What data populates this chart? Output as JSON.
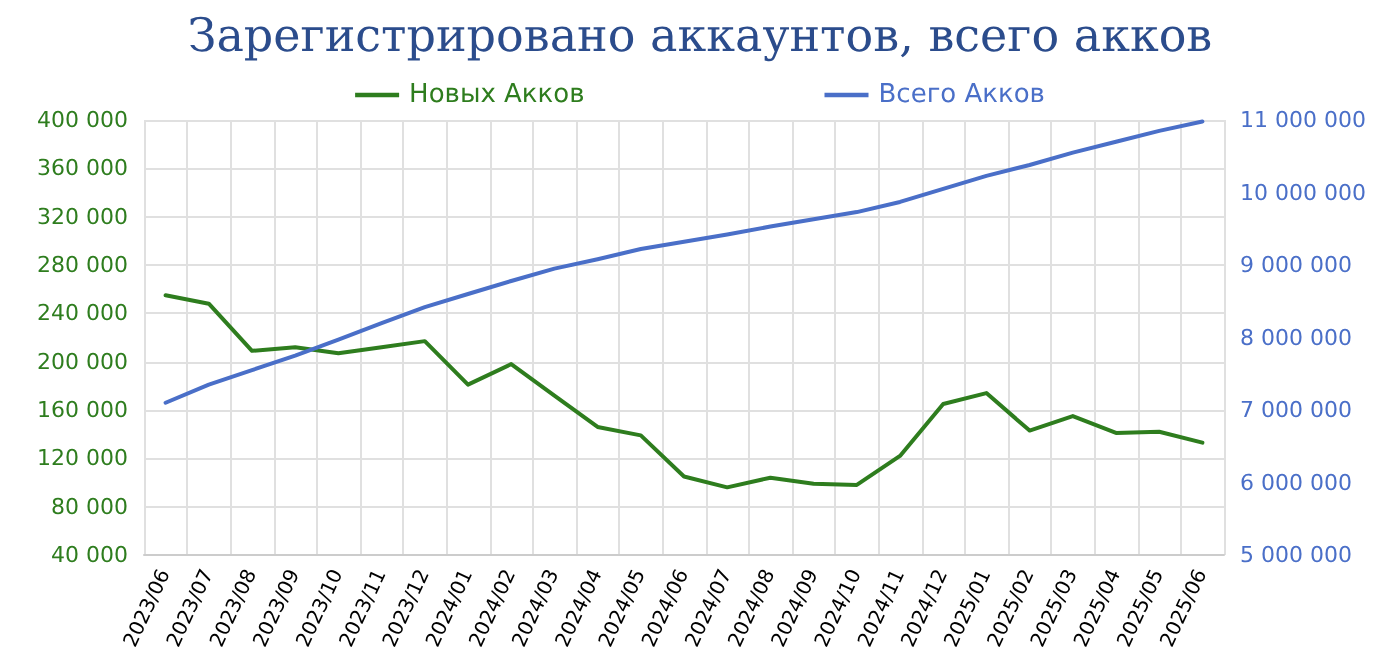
{
  "chart_data": {
    "type": "line",
    "title": "Зарегистрировано аккаунтов, всего акков",
    "categories": [
      "2023/06",
      "2023/07",
      "2023/08",
      "2023/09",
      "2023/10",
      "2023/11",
      "2023/12",
      "2024/01",
      "2024/02",
      "2024/03",
      "2024/04",
      "2024/05",
      "2024/06",
      "2024/07",
      "2024/08",
      "2024/09",
      "2024/10",
      "2024/11",
      "2024/12",
      "2025/01",
      "2025/02",
      "2025/03",
      "2025/04",
      "2025/05",
      "2025/06"
    ],
    "series": [
      {
        "name": "Новых Акков",
        "color": "#2e7d1e",
        "values": [
          255000,
          248000,
          209000,
          212000,
          207000,
          212000,
          217000,
          181000,
          198000,
          172000,
          146000,
          139000,
          105000,
          96000,
          104000,
          99000,
          98000,
          122000,
          165000,
          174000,
          143000,
          155000,
          141000,
          142000,
          133000
        ]
      },
      {
        "name": "Всего Акков",
        "color": "#4a6fc8",
        "axis": "y2",
        "values": [
          7100000,
          7350000,
          7550000,
          7750000,
          7970000,
          8200000,
          8420000,
          8600000,
          8780000,
          8950000,
          9080000,
          9220000,
          9320000,
          9420000,
          9530000,
          9630000,
          9730000,
          9870000,
          10050000,
          10230000,
          10380000,
          10550000,
          10700000,
          10850000,
          10980000
        ]
      }
    ],
    "ylim": [
      40000,
      400000
    ],
    "yticks": [
      40000,
      80000,
      120000,
      160000,
      200000,
      240000,
      280000,
      320000,
      360000,
      400000
    ],
    "y2lim": [
      5000000,
      11000000
    ],
    "y2ticks": [
      5000000,
      6000000,
      7000000,
      8000000,
      9000000,
      10000000,
      11000000
    ],
    "grid": true,
    "legend": "top",
    "marker": "none",
    "line_style": "solid"
  }
}
